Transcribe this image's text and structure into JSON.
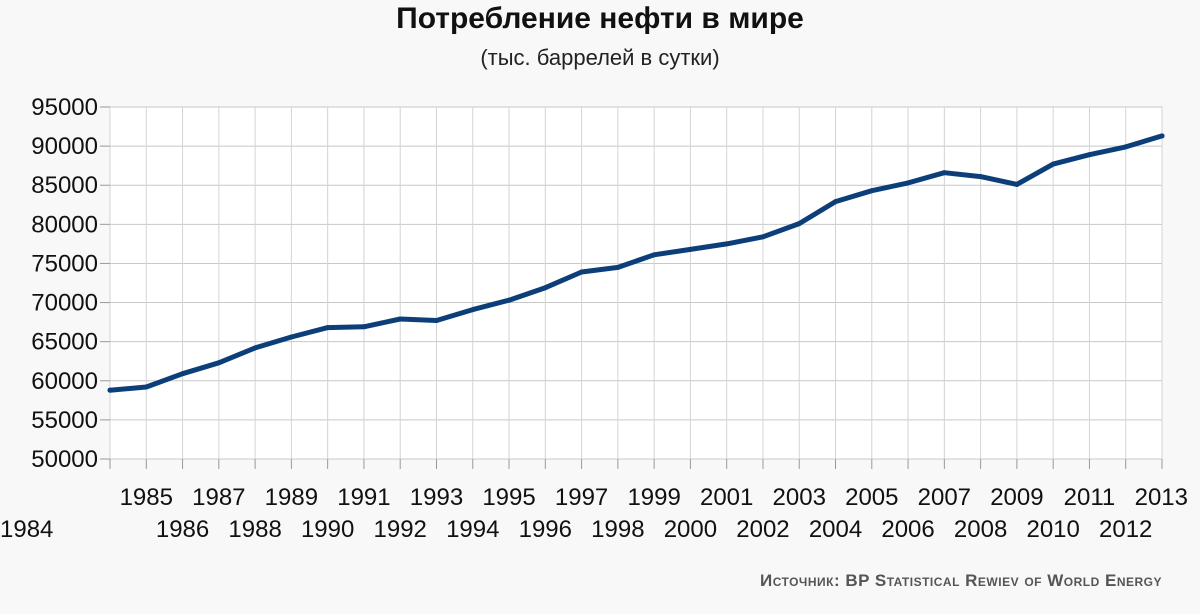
{
  "chart_data": {
    "type": "line",
    "title": "Потребление нефти в мире",
    "subtitle": "(тыс. баррелей в сутки)",
    "source": "Источник: BP Statistical Rewiev of World Energy",
    "ylim": [
      50000,
      95000
    ],
    "yticks": [
      50000,
      55000,
      60000,
      65000,
      70000,
      75000,
      80000,
      85000,
      90000,
      95000
    ],
    "grid": true,
    "line_color": "#0c3f7a",
    "x": [
      1984,
      1985,
      1986,
      1987,
      1988,
      1989,
      1990,
      1991,
      1992,
      1993,
      1994,
      1995,
      1996,
      1997,
      1998,
      1999,
      2000,
      2001,
      2002,
      2003,
      2004,
      2005,
      2006,
      2007,
      2008,
      2009,
      2010,
      2011,
      2012,
      2013
    ],
    "series": [
      {
        "values": [
          58800,
          59200,
          60900,
          62300,
          64200,
          65600,
          66800,
          66900,
          67900,
          67700,
          69100,
          70300,
          71900,
          73900,
          74500,
          76100,
          76800,
          77500,
          78400,
          80100,
          82900,
          84300,
          85300,
          86600,
          86100,
          85100,
          87700,
          88900,
          89900,
          91300
        ]
      }
    ]
  }
}
